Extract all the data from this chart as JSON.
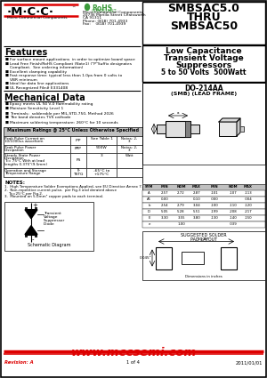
{
  "title_part": "SMBSAC5.0\nTHRU\nSMBSAC50",
  "subtitle1": "Low Capacitance",
  "subtitle2": "Transient Voltage",
  "subtitle3": "Suppressors",
  "subtitle4": "5 to 50 Volts  500Watt",
  "company_name": "Micro Commercial Components",
  "company_addr1": "20736 Marilla Street Chatsworth",
  "company_addr2": "CA 91311",
  "company_phone": "Phone: (818) 701-4933",
  "company_fax": "Fax:    (818) 701-4939",
  "features_title": "Features",
  "mech_title": "Mechanical Data",
  "max_ratings_title": "Maximum Ratings @ 25°C Unless Otherwise Specified",
  "notes_title": "NOTES:",
  "notes": [
    "1.  High Temperature Solder Exemptions Applied, see EU Directive Annex 7.",
    "2.  Non-repetitive current pulse,  per Fig.3 and derated above",
    "    Tc=25°C per Fig.2.",
    "3.  Mounted on 5.0mm² copper pads to each terminal."
  ],
  "package_title": "DO-214AA",
  "package_sub": "(SMB) (LEAD FRAME)",
  "schematic_label": "Schematic Diagram",
  "footer_url": "www.mccsemi.com",
  "footer_rev": "Revision: A",
  "footer_date": "2011/01/01",
  "footer_page": "1 of 4",
  "bg_color": "#ffffff",
  "header_red": "#cc0000",
  "mcc_red": "#dd0000"
}
